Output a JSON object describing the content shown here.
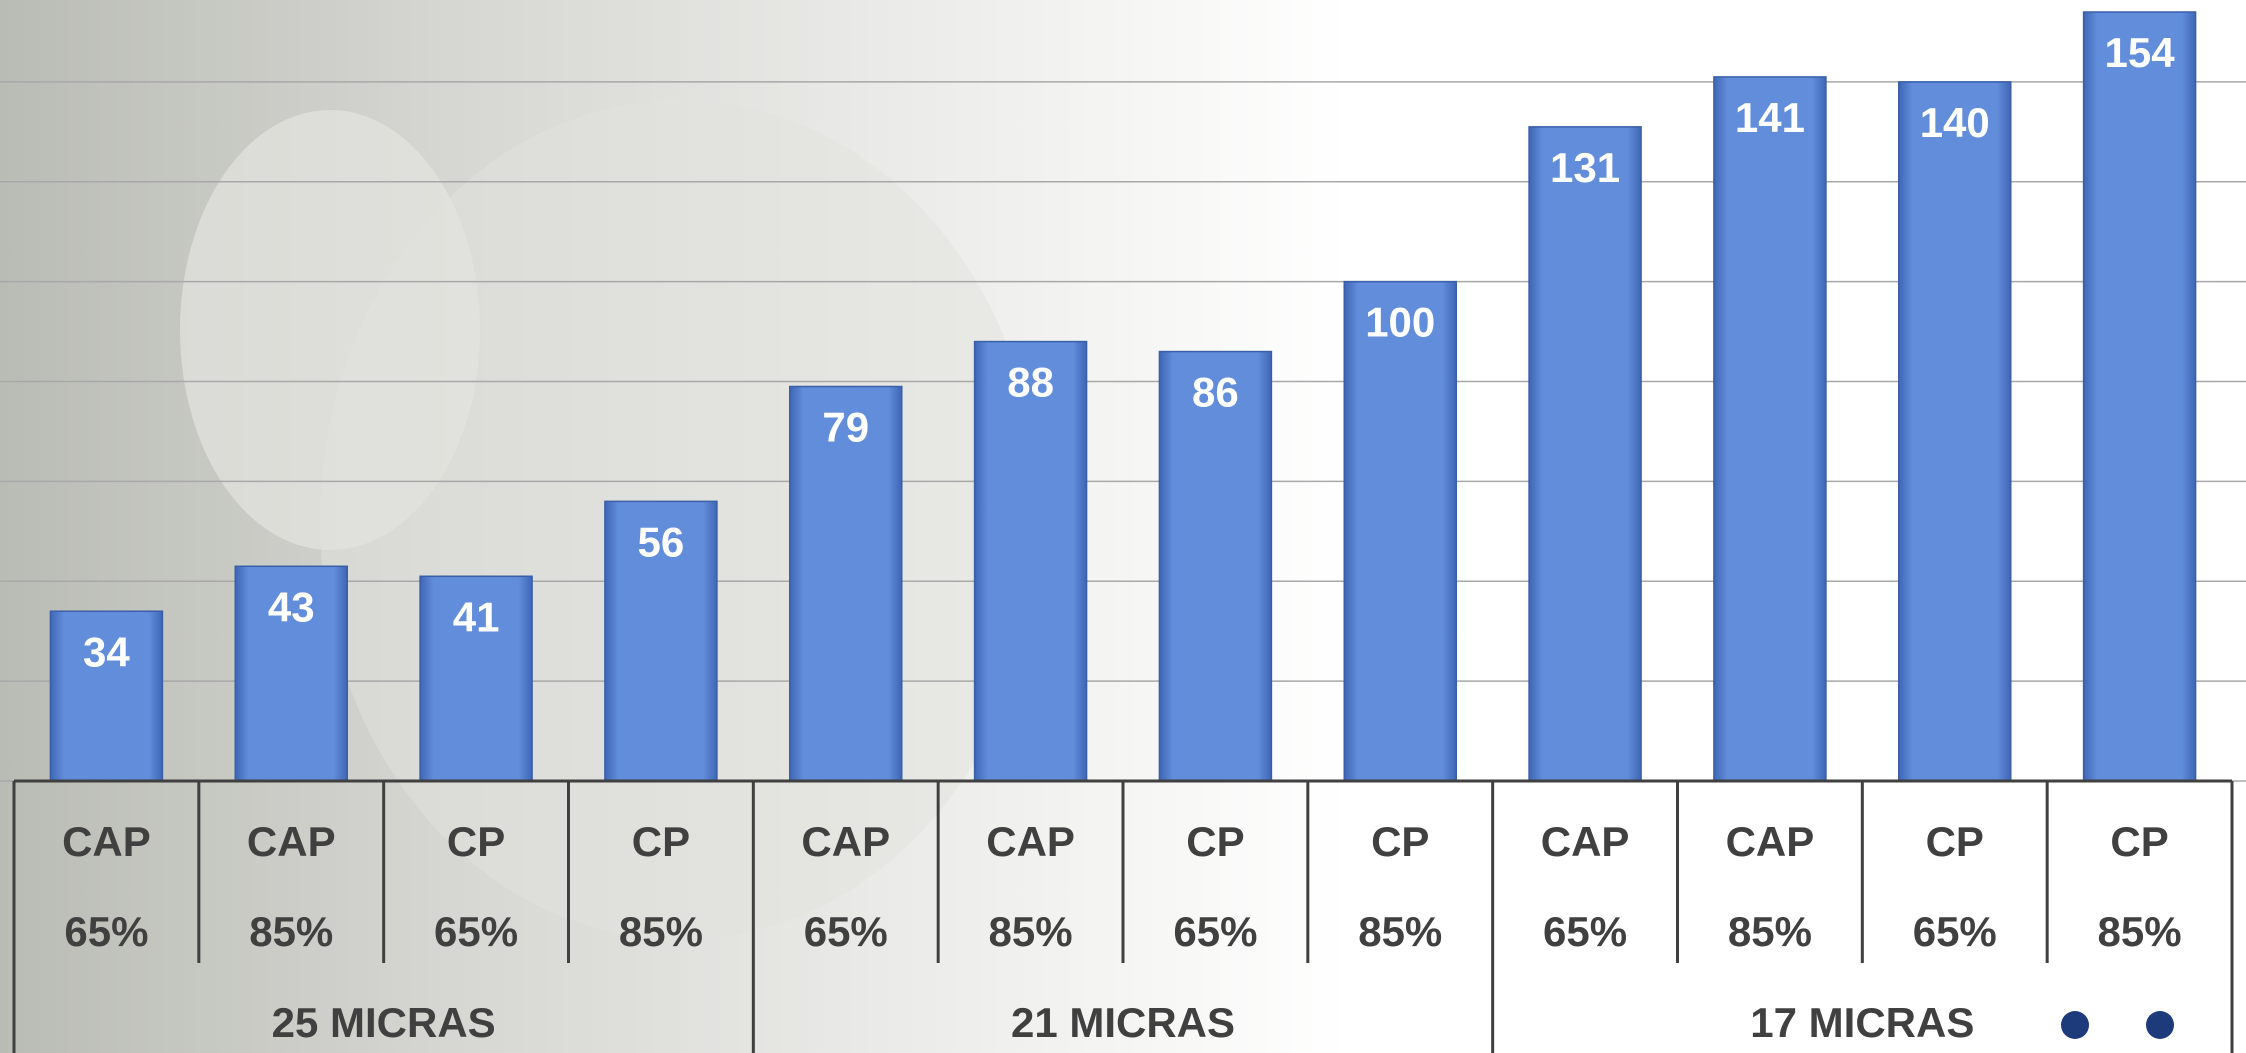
{
  "chart_data": {
    "type": "bar",
    "categories": [
      [
        "CAP",
        "65%"
      ],
      [
        "CAP",
        "85%"
      ],
      [
        "CP",
        "65%"
      ],
      [
        "CP",
        "85%"
      ],
      [
        "CAP",
        "65%"
      ],
      [
        "CAP",
        "85%"
      ],
      [
        "CP",
        "65%"
      ],
      [
        "CP",
        "85%"
      ],
      [
        "CAP",
        "65%"
      ],
      [
        "CAP",
        "85%"
      ],
      [
        "CP",
        "65%"
      ],
      [
        "CP",
        "85%"
      ]
    ],
    "category_groups": [
      "25 MICRAS",
      "21 MICRAS",
      "17 MICRAS"
    ],
    "values": [
      34,
      43,
      41,
      56,
      79,
      88,
      86,
      100,
      131,
      141,
      140,
      154
    ],
    "color": "#5b86d6",
    "ylim": [
      0,
      155
    ],
    "yticks": [
      0,
      20,
      40,
      60,
      80,
      100,
      120,
      140
    ],
    "grid": true
  }
}
